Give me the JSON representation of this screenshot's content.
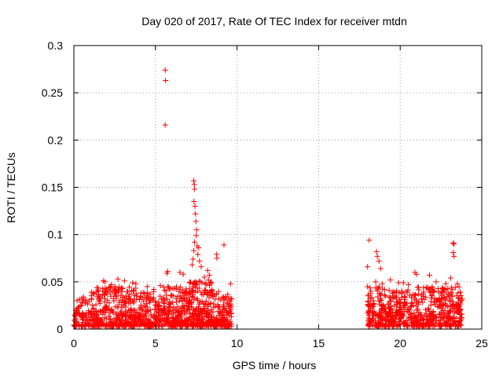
{
  "chart_data": {
    "type": "scatter",
    "title": "Day 020 of 2017, Rate Of TEC Index for receiver mtdn",
    "xlabel": "GPS time / hours",
    "ylabel": "ROTI / TECUs",
    "xlim": [
      0,
      25
    ],
    "ylim": [
      0,
      0.3
    ],
    "xticks": [
      0,
      5,
      10,
      15,
      20,
      25
    ],
    "xtick_labels": [
      "0",
      "5",
      "10",
      "15",
      "20",
      "25"
    ],
    "yticks": [
      0,
      0.05,
      0.1,
      0.15,
      0.2,
      0.25,
      0.3
    ],
    "ytick_labels": [
      "0",
      "0.05",
      "0.1",
      "0.15",
      "0.2",
      "0.25",
      "0.3"
    ],
    "grid": true,
    "marker": "+",
    "marker_color": "#ff0000",
    "series": [
      {
        "points": [
          [
            5.6,
            0.274
          ],
          [
            5.62,
            0.263
          ],
          [
            5.6,
            0.216
          ],
          [
            7.35,
            0.157
          ],
          [
            7.38,
            0.153
          ],
          [
            7.4,
            0.148
          ],
          [
            7.36,
            0.135
          ],
          [
            7.42,
            0.13
          ],
          [
            7.45,
            0.122
          ],
          [
            7.48,
            0.114
          ],
          [
            7.52,
            0.105
          ],
          [
            7.5,
            0.099
          ],
          [
            7.4,
            0.092
          ],
          [
            7.55,
            0.088
          ],
          [
            7.65,
            0.086
          ],
          [
            7.6,
            0.079
          ],
          [
            7.7,
            0.072
          ],
          [
            7.8,
            0.066
          ],
          [
            7.35,
            0.083
          ],
          [
            7.3,
            0.074
          ],
          [
            7.25,
            0.068
          ],
          [
            8.75,
            0.079
          ],
          [
            8.77,
            0.075
          ],
          [
            9.2,
            0.089
          ],
          [
            5.75,
            0.061
          ],
          [
            5.7,
            0.059
          ],
          [
            6.5,
            0.06
          ],
          [
            6.7,
            0.058
          ],
          [
            8.2,
            0.062
          ],
          [
            8.3,
            0.057
          ],
          [
            8.0,
            0.055
          ],
          [
            9.6,
            0.048
          ],
          [
            2.7,
            0.053
          ],
          [
            3.1,
            0.051
          ],
          [
            1.8,
            0.051
          ],
          [
            1.9,
            0.05
          ],
          [
            3.6,
            0.049
          ],
          [
            3.8,
            0.048
          ],
          [
            2.3,
            0.047
          ],
          [
            4.5,
            0.045
          ],
          [
            1.2,
            0.038
          ],
          [
            0.6,
            0.034
          ],
          [
            0.2,
            0.03
          ],
          [
            4.9,
            0.042
          ],
          [
            5.3,
            0.046
          ],
          [
            18.1,
            0.094
          ],
          [
            18.0,
            0.066
          ],
          [
            18.55,
            0.082
          ],
          [
            18.6,
            0.077
          ],
          [
            18.7,
            0.072
          ],
          [
            18.8,
            0.064
          ],
          [
            18.5,
            0.05
          ],
          [
            18.9,
            0.048
          ],
          [
            19.4,
            0.052
          ],
          [
            19.9,
            0.049
          ],
          [
            20.2,
            0.049
          ],
          [
            20.5,
            0.047
          ],
          [
            20.9,
            0.06
          ],
          [
            21.0,
            0.058
          ],
          [
            21.8,
            0.057
          ],
          [
            22.2,
            0.05
          ],
          [
            22.8,
            0.048
          ],
          [
            23.1,
            0.054
          ],
          [
            23.25,
            0.091
          ],
          [
            23.3,
            0.09
          ],
          [
            23.25,
            0.081
          ],
          [
            23.3,
            0.077
          ],
          [
            23.5,
            0.048
          ],
          [
            23.8,
            0.032
          ],
          [
            18.0,
            0.045
          ],
          [
            18.2,
            0.04
          ]
        ],
        "bands": [
          {
            "x": [
              0,
              0.2
            ],
            "y": [
              0.003,
              0.023
            ],
            "n": 25
          },
          {
            "x": [
              0.2,
              1
            ],
            "y": [
              0.003,
              0.033
            ],
            "n": 70
          },
          {
            "x": [
              1,
              2
            ],
            "y": [
              0.003,
              0.045
            ],
            "n": 130
          },
          {
            "x": [
              2,
              4
            ],
            "y": [
              0.003,
              0.045
            ],
            "n": 240
          },
          {
            "x": [
              4,
              5.5
            ],
            "y": [
              0.003,
              0.04
            ],
            "n": 170
          },
          {
            "x": [
              5.5,
              7
            ],
            "y": [
              0.003,
              0.045
            ],
            "n": 200
          },
          {
            "x": [
              7,
              8.5
            ],
            "y": [
              0.003,
              0.052
            ],
            "n": 230
          },
          {
            "x": [
              8.5,
              9.7
            ],
            "y": [
              0.003,
              0.04
            ],
            "n": 150
          },
          {
            "x": [
              18,
              19
            ],
            "y": [
              0.003,
              0.045
            ],
            "n": 120
          },
          {
            "x": [
              19,
              21
            ],
            "y": [
              0.003,
              0.042
            ],
            "n": 230
          },
          {
            "x": [
              21,
              22.5
            ],
            "y": [
              0.003,
              0.045
            ],
            "n": 170
          },
          {
            "x": [
              22.5,
              23.8
            ],
            "y": [
              0.003,
              0.045
            ],
            "n": 160
          }
        ]
      }
    ]
  }
}
